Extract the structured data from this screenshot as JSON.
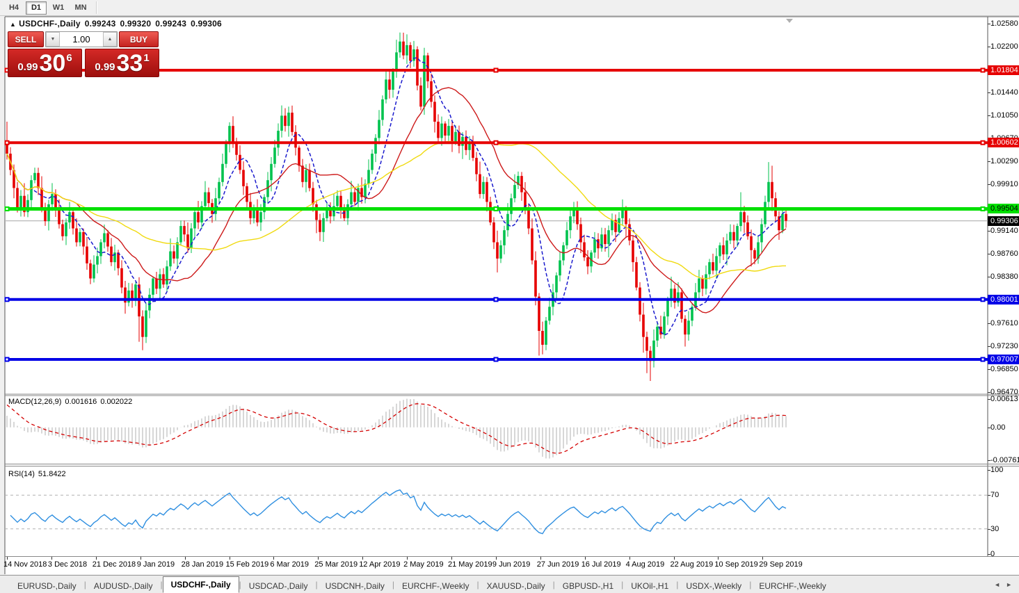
{
  "toolbar": {
    "timeframes": [
      {
        "label": "H4",
        "active": false
      },
      {
        "label": "D1",
        "active": true
      },
      {
        "label": "W1",
        "active": false
      },
      {
        "label": "MN",
        "active": false
      }
    ]
  },
  "chart": {
    "header": {
      "collapse_icon": "▲"
    },
    "one_click": {
      "sell_label": "SELL",
      "buy_label": "BUY",
      "volume": "1.00",
      "spin_down_icon": "▼",
      "spin_up_icon": "▲",
      "sell_price": {
        "small": "0.99",
        "big": "30",
        "sup": "6"
      },
      "buy_price": {
        "small": "0.99",
        "big": "33",
        "sup": "1"
      }
    },
    "shift_marker_color": "#b0b0b0"
  },
  "chart_data": {
    "type": "candlestick",
    "symbol": "USDCHF-,Daily",
    "ohlc_display": {
      "open": "0.99243",
      "high": "0.99320",
      "low": "0.99243",
      "close": "0.99306"
    },
    "price_range": {
      "top": 1.026919,
      "bottom": 0.964421
    },
    "price_scale_labels": [
      "1.02580",
      "1.02200",
      "1.01440",
      "1.01050",
      "1.00670",
      "1.00290",
      "0.99910",
      "0.99140",
      "0.98760",
      "0.98380",
      "0.97610",
      "0.97230",
      "0.96850",
      "0.96470"
    ],
    "date_labels": [
      "14 Nov 2018",
      "3 Dec 2018",
      "21 Dec 2018",
      "9 Jan 2019",
      "28 Jan 2019",
      "15 Feb 2019",
      "6 Mar 2019",
      "25 Mar 2019",
      "12 Apr 2019",
      "2 May 2019",
      "21 May 2019",
      "9 Jun 2019",
      "27 Jun 2019",
      "16 Jul 2019",
      "4 Aug 2019",
      "22 Aug 2019",
      "10 Sep 2019",
      "29 Sep 2019"
    ],
    "bull_color": "#00c24e",
    "bear_color": "#e60000",
    "first_open": 1.0062,
    "closes": [
      1.0042,
      1.0015,
      0.9985,
      0.995,
      0.9972,
      0.9945,
      0.9965,
      0.9998,
      1.001,
      0.9985,
      0.9952,
      0.993,
      0.9958,
      0.9975,
      0.9948,
      0.9925,
      0.9905,
      0.9928,
      0.9945,
      0.9918,
      0.9895,
      0.9912,
      0.9888,
      0.986,
      0.9835,
      0.9858,
      0.9872,
      0.9895,
      0.991,
      0.9888,
      0.9862,
      0.9878,
      0.9852,
      0.982,
      0.9795,
      0.9815,
      0.98,
      0.9825,
      0.9772,
      0.9738,
      0.9782,
      0.9808,
      0.9835,
      0.9818,
      0.9842,
      0.9825,
      0.9855,
      0.988,
      0.9868,
      0.9895,
      0.9922,
      0.9908,
      0.9885,
      0.9918,
      0.9945,
      0.9928,
      0.9955,
      0.9978,
      0.996,
      0.9942,
      0.9968,
      0.9995,
      1.0025,
      1.0058,
      1.0088,
      1.0062,
      1.004,
      1.0015,
      0.9988,
      0.9962,
      0.9935,
      0.9952,
      0.9928,
      0.9945,
      0.997,
      0.9998,
      1.0025,
      1.0052,
      1.008,
      1.0105,
      1.0088,
      1.011,
      1.0078,
      1.0052,
      1.0022,
      0.9995,
      1.0015,
      0.9985,
      0.9958,
      0.9932,
      0.9912,
      0.9935,
      0.9952,
      0.9938,
      0.9955,
      0.9972,
      0.995,
      0.9935,
      0.9958,
      0.9978,
      0.9962,
      0.9985,
      0.997,
      0.9992,
      1.0015,
      1.0042,
      1.0068,
      1.0098,
      1.0132,
      1.0165,
      1.0148,
      1.0178,
      1.021,
      1.0228,
      1.0205,
      1.0222,
      1.0196,
      1.0215,
      1.0155,
      1.012,
      1.0205,
      1.0162,
      1.0128,
      1.0095,
      1.0068,
      1.0092,
      1.0072,
      1.0088,
      1.0062,
      1.0078,
      1.0055,
      1.007,
      1.0048,
      1.0062,
      1.0035,
      1.0008,
      0.9975,
      0.9995,
      0.9962,
      0.9928,
      0.9895,
      0.9868,
      0.989,
      0.9915,
      0.9942,
      0.9968,
      0.999,
      1.0005,
      0.9978,
      0.9952,
      0.9918,
      0.9865,
      0.9805,
      0.9748,
      0.9725,
      0.9765,
      0.9788,
      0.9812,
      0.984,
      0.9865,
      0.989,
      0.9915,
      0.9938,
      0.995,
      0.9925,
      0.9895,
      0.987,
      0.9855,
      0.9878,
      0.99,
      0.9885,
      0.9908,
      0.9892,
      0.9915,
      0.9932,
      0.9912,
      0.9935,
      0.9948,
      0.9925,
      0.9898,
      0.9862,
      0.982,
      0.9775,
      0.9738,
      0.9715,
      0.9698,
      0.9732,
      0.9755,
      0.9742,
      0.9772,
      0.9798,
      0.9818,
      0.9795,
      0.9812,
      0.9768,
      0.9742,
      0.9765,
      0.9788,
      0.9812,
      0.9835,
      0.9818,
      0.9842,
      0.9862,
      0.9848,
      0.9872,
      0.989,
      0.9875,
      0.9898,
      0.9912,
      0.9898,
      0.9922,
      0.9945,
      0.9928,
      0.9905,
      0.9882,
      0.9868,
      0.9895,
      0.9925,
      0.9962,
      0.9995,
      0.9968,
      0.9938,
      0.9915,
      0.9942,
      0.99306
    ],
    "wick_overrides": {
      "0": [
        1.0095,
        null
      ],
      "38": [
        null,
        0.973
      ],
      "39": [
        null,
        0.9716
      ],
      "40": [
        null,
        0.9728
      ],
      "64": [
        1.0094,
        null
      ],
      "79": [
        1.0122,
        null
      ],
      "81": [
        1.012,
        null
      ],
      "90": [
        null,
        0.9897
      ],
      "112": [
        1.0231,
        null
      ],
      "113": [
        1.0243,
        null
      ],
      "115": [
        1.024,
        null
      ],
      "141": [
        null,
        0.9845
      ],
      "153": [
        null,
        0.9707
      ],
      "154": [
        null,
        0.9709
      ],
      "163": [
        0.9962,
        null
      ],
      "177": [
        0.9966,
        null
      ],
      "183": [
        null,
        0.9712
      ],
      "184": [
        null,
        0.9678
      ],
      "185": [
        null,
        0.9665
      ],
      "191": [
        0.9838,
        null
      ],
      "195": [
        null,
        0.9722
      ],
      "211": [
        0.9978,
        null
      ],
      "214": [
        null,
        0.9855
      ],
      "219": [
        1.0028,
        null
      ],
      "220": [
        1.0022,
        null
      ]
    },
    "moving_averages": [
      {
        "period": 8,
        "color": "#1a1acd",
        "style": "dashed"
      },
      {
        "period": 21,
        "color": "#cd1a1a",
        "style": "solid"
      },
      {
        "period": 50,
        "color": "#f0da10",
        "style": "solid"
      }
    ],
    "horizontal_lines": [
      {
        "price": 1.01804,
        "label": "1.01804",
        "color": "#e60000",
        "width": 4,
        "label_text_color": "#ffffff"
      },
      {
        "price": 1.00602,
        "label": "1.00602",
        "color": "#e60000",
        "width": 4,
        "label_text_color": "#ffffff"
      },
      {
        "price": 0.99504,
        "label": "0.99504",
        "color": "#00e000",
        "width": 5,
        "label_text_color": "#000000"
      },
      {
        "price": 0.98001,
        "label": "0.98001",
        "color": "#0000e6",
        "width": 4,
        "label_text_color": "#ffffff"
      },
      {
        "price": 0.97007,
        "label": "0.97007",
        "color": "#0000e6",
        "width": 4,
        "label_text_color": "#ffffff"
      }
    ],
    "current_price": {
      "price": 0.99306,
      "label": "0.99306",
      "line_color": "#b8b8b8",
      "tag_bg": "#000000",
      "tag_text": "#ffffff"
    },
    "macd": {
      "title": "MACD(12,26,9)",
      "value": "0.001616",
      "signal_value": "0.002022",
      "scale": [
        "0.00613",
        "0.00",
        "-0.007612"
      ],
      "range": [
        -0.0078,
        0.0068
      ],
      "seed_fast": 0.003,
      "seed_signal": 0.0055,
      "histogram_color": "#c6c6c6",
      "signal_color": "#d40000"
    },
    "rsi": {
      "title": "RSI(14)",
      "value": "51.8422",
      "scale": [
        "100",
        "70",
        "30",
        "0"
      ],
      "levels": [
        70,
        30
      ],
      "level_color": "#b0b0b0",
      "color": "#2f8fe0"
    }
  },
  "tabs": {
    "items": [
      {
        "label": "EURUSD-,Daily",
        "active": false
      },
      {
        "label": "AUDUSD-,Daily",
        "active": false
      },
      {
        "label": "USDCHF-,Daily",
        "active": true
      },
      {
        "label": "USDCAD-,Daily",
        "active": false
      },
      {
        "label": "USDCNH-,Daily",
        "active": false
      },
      {
        "label": "EURCHF-,Weekly",
        "active": false
      },
      {
        "label": "XAUUSD-,Daily",
        "active": false
      },
      {
        "label": "GBPUSD-,H1",
        "active": false
      },
      {
        "label": "UKOil-,H1",
        "active": false
      },
      {
        "label": "USDX-,Weekly",
        "active": false
      },
      {
        "label": "EURCHF-,Weekly",
        "active": false
      }
    ],
    "nav_left": "◄",
    "nav_right": "►"
  }
}
